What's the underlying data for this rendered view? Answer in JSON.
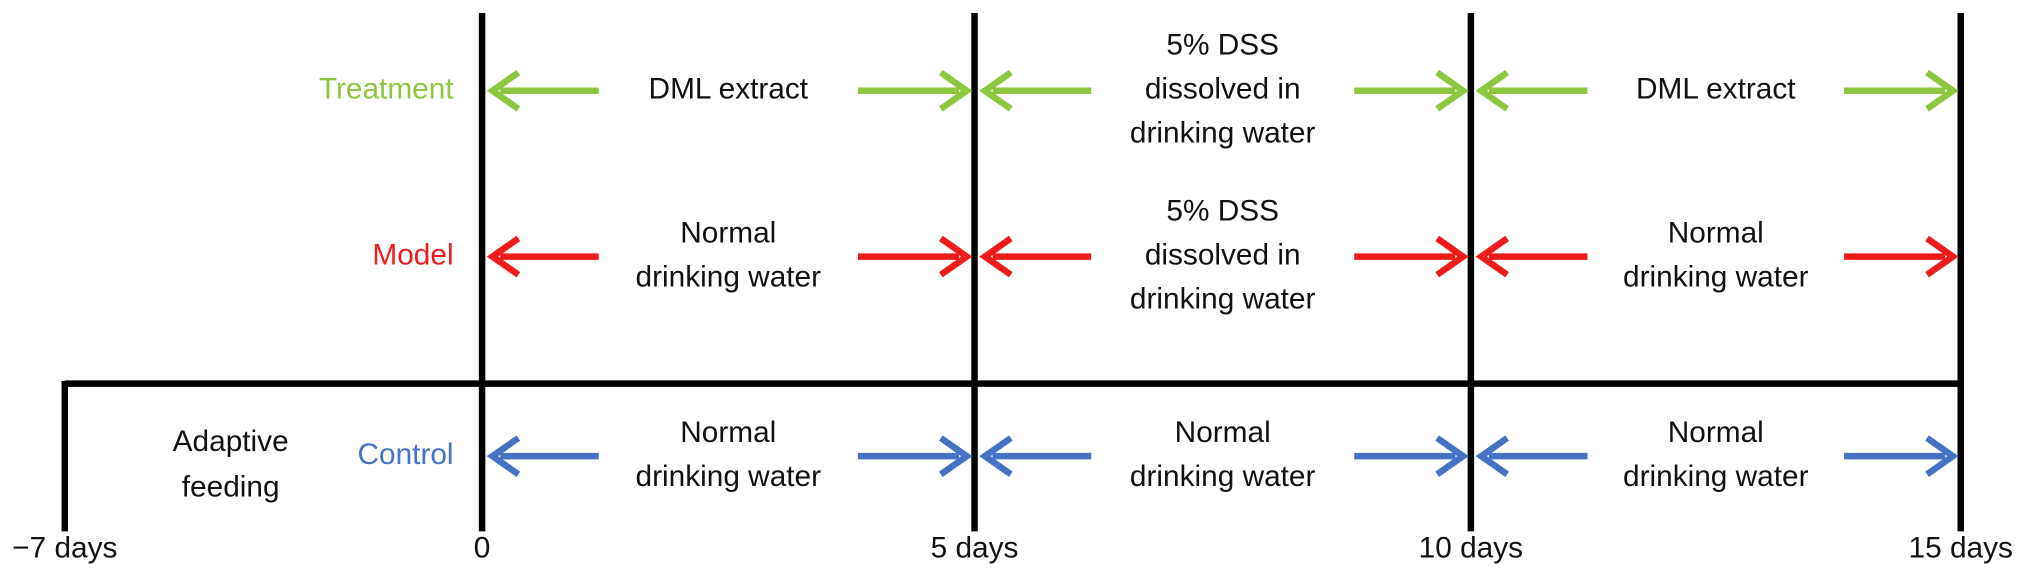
{
  "rows": [
    {
      "label": "Treatment",
      "color": "#8dc63f",
      "cells": [
        {
          "lines": [
            "DML extract"
          ]
        },
        {
          "lines": [
            "5% DSS",
            "dissolved in",
            "drinking water"
          ]
        },
        {
          "lines": [
            "DML extract"
          ]
        }
      ]
    },
    {
      "label": "Model",
      "color": "#ee1c1c",
      "cells": [
        {
          "lines": [
            "Normal",
            "drinking water"
          ]
        },
        {
          "lines": [
            "5% DSS",
            "dissolved in",
            "drinking water"
          ]
        },
        {
          "lines": [
            "Normal",
            "drinking water"
          ]
        }
      ]
    },
    {
      "label": "Control",
      "color": "#4472c4",
      "cells": [
        {
          "lines": [
            "Normal",
            "drinking water"
          ]
        },
        {
          "lines": [
            "Normal",
            "drinking water"
          ]
        },
        {
          "lines": [
            "Normal",
            "drinking water"
          ]
        }
      ]
    }
  ],
  "adaptive": [
    "Adaptive",
    "feeding"
  ],
  "times": [
    "−7 days",
    "0",
    "5 days",
    "10 days",
    "15 days"
  ]
}
